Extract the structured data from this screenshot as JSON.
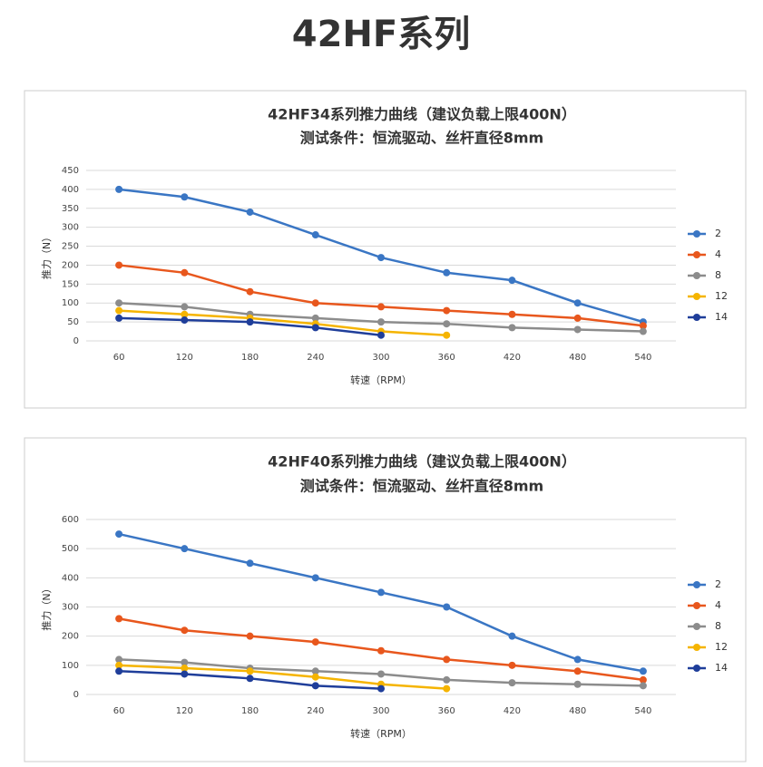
{
  "header": {
    "title": "42HF系列"
  },
  "chart_data": [
    {
      "type": "line",
      "title": "42HF34系列推力曲线（建议负载上限400N）",
      "subtitle": "测试条件：恒流驱动、丝杆直径8mm",
      "x_label": "转速（RPM）",
      "y_label": "推力（N）",
      "categories": [
        "60",
        "120",
        "180",
        "240",
        "300",
        "360",
        "420",
        "480",
        "540"
      ],
      "ylim": [
        0,
        450
      ],
      "yticks": [
        0,
        50,
        100,
        150,
        200,
        250,
        300,
        350,
        400,
        450
      ],
      "grid": true,
      "legend": "right",
      "series": [
        {
          "name": "2",
          "color": "#3a76c4",
          "values": [
            400,
            380,
            340,
            280,
            220,
            180,
            160,
            100,
            50
          ]
        },
        {
          "name": "4",
          "color": "#e8571d",
          "values": [
            200,
            180,
            130,
            100,
            90,
            80,
            70,
            60,
            40
          ]
        },
        {
          "name": "8",
          "color": "#8c8c8c",
          "values": [
            100,
            90,
            70,
            60,
            50,
            45,
            35,
            30,
            25
          ]
        },
        {
          "name": "12",
          "color": "#f5b400",
          "values": [
            80,
            70,
            60,
            45,
            25,
            15,
            null,
            null,
            null
          ]
        },
        {
          "name": "14",
          "color": "#1f3e9a",
          "values": [
            60,
            55,
            50,
            35,
            15,
            null,
            null,
            null,
            null
          ]
        }
      ]
    },
    {
      "type": "line",
      "title": "42HF40系列推力曲线（建议负载上限400N）",
      "subtitle": "测试条件：恒流驱动、丝杆直径8mm",
      "x_label": "转速（RPM）",
      "y_label": "推力（N）",
      "categories": [
        "60",
        "120",
        "180",
        "240",
        "300",
        "360",
        "420",
        "480",
        "540"
      ],
      "ylim": [
        0,
        600
      ],
      "yticks": [
        0,
        100,
        200,
        300,
        400,
        500,
        600
      ],
      "grid": true,
      "legend": "right",
      "series": [
        {
          "name": "2",
          "color": "#3a76c4",
          "values": [
            550,
            500,
            450,
            400,
            350,
            300,
            200,
            120,
            80
          ]
        },
        {
          "name": "4",
          "color": "#e8571d",
          "values": [
            260,
            220,
            200,
            180,
            150,
            120,
            100,
            80,
            50
          ]
        },
        {
          "name": "8",
          "color": "#8c8c8c",
          "values": [
            120,
            110,
            90,
            80,
            70,
            50,
            40,
            35,
            30
          ]
        },
        {
          "name": "12",
          "color": "#f5b400",
          "values": [
            100,
            90,
            80,
            60,
            35,
            20,
            null,
            null,
            null
          ]
        },
        {
          "name": "14",
          "color": "#1f3e9a",
          "values": [
            80,
            70,
            55,
            30,
            20,
            null,
            null,
            null,
            null
          ]
        }
      ]
    }
  ]
}
